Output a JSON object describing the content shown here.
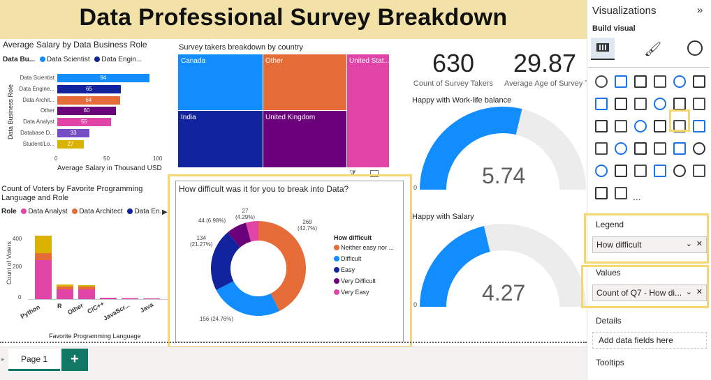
{
  "title": "Data Professional Survey Breakdown",
  "salary": {
    "title": "Average Salary by Data Business Role",
    "legend_label": "Data Bu...",
    "legend": [
      "Data Scientist",
      "Data Engin..."
    ],
    "ylabel": "Data Business Role",
    "xlabel": "Average Salary in Thousand USD",
    "ticks": [
      "0",
      "50",
      "100"
    ],
    "roles": [
      {
        "label": "Data Scientist",
        "value": 94,
        "color": "#118dff"
      },
      {
        "label": "Data Engine...",
        "value": 65,
        "color": "#12239e"
      },
      {
        "label": "Data Archit...",
        "value": 64,
        "color": "#e66c37"
      },
      {
        "label": "Other",
        "value": 60,
        "color": "#6b007b"
      },
      {
        "label": "Data Analyst",
        "value": 55,
        "color": "#e044a7"
      },
      {
        "label": "Database D...",
        "value": 33,
        "color": "#744ec2"
      },
      {
        "label": "Student/Lo...",
        "value": 27,
        "color": "#d9b300"
      }
    ]
  },
  "treemap": {
    "title": "Survey takers breakdown by country",
    "cells": [
      {
        "label": "Canada",
        "color": "#118dff"
      },
      {
        "label": "Other",
        "color": "#e66c37"
      },
      {
        "label": "United Stat...",
        "color": "#e044a7"
      },
      {
        "label": "India",
        "color": "#12239e"
      },
      {
        "label": "United Kingdom",
        "color": "#6b007b"
      }
    ]
  },
  "cards": {
    "takers_value": "630",
    "takers_label": "Count of Survey Takers",
    "age_value": "29.87",
    "age_label": "Average Age of Survey T"
  },
  "gauge1": {
    "title": "Happy with Work-life balance",
    "value": "5.74",
    "min": "0",
    "fraction": 0.574
  },
  "gauge2": {
    "title": "Happy with Salary",
    "value": "4.27",
    "min": "0",
    "fraction": 0.427
  },
  "prog": {
    "title1": "Count of Voters by Favorite Programming",
    "title2": "Language and Role",
    "legend_label": "Role",
    "legend": [
      "Data Analyst",
      "Data Architect",
      "Data En..."
    ],
    "ylabel": "Count of Voters",
    "xlabel": "Favorite Programming Language",
    "yticks": [
      "400",
      "200",
      "0"
    ],
    "categories": [
      "Python",
      "R",
      "Other",
      "C/C++",
      "JavaScr...",
      "Java"
    ]
  },
  "chart_data": {
    "type": "donut",
    "title": "How difficult was it for you to break into Data?",
    "legend_title": "How difficult",
    "slices": [
      {
        "name": "Neither easy nor ...",
        "value": 269,
        "label": "269\n(42.7%)",
        "color": "#e66c37"
      },
      {
        "name": "Difficult",
        "value": 156,
        "label": "156 (24.76%)",
        "color": "#118dff"
      },
      {
        "name": "Easy",
        "value": 134,
        "label": "134\n(21.27%)",
        "color": "#12239e"
      },
      {
        "name": "Very Difficult",
        "value": 44,
        "label": "44 (6.98%)",
        "color": "#6b007b"
      },
      {
        "name": "Very Easy",
        "value": 27,
        "label": "27\n(4.29%)",
        "color": "#e044a7"
      }
    ]
  },
  "pane": {
    "title": "Visualizations",
    "build": "Build visual",
    "legend_header": "Legend",
    "legend_field": "How difficult",
    "values_header": "Values",
    "values_field": "Count of Q7 - How di...",
    "details_header": "Details",
    "details_placeholder": "Add data fields here",
    "tooltips_header": "Tooltips",
    "more": "..."
  },
  "tabs": {
    "page1": "Page 1",
    "add": "+"
  }
}
